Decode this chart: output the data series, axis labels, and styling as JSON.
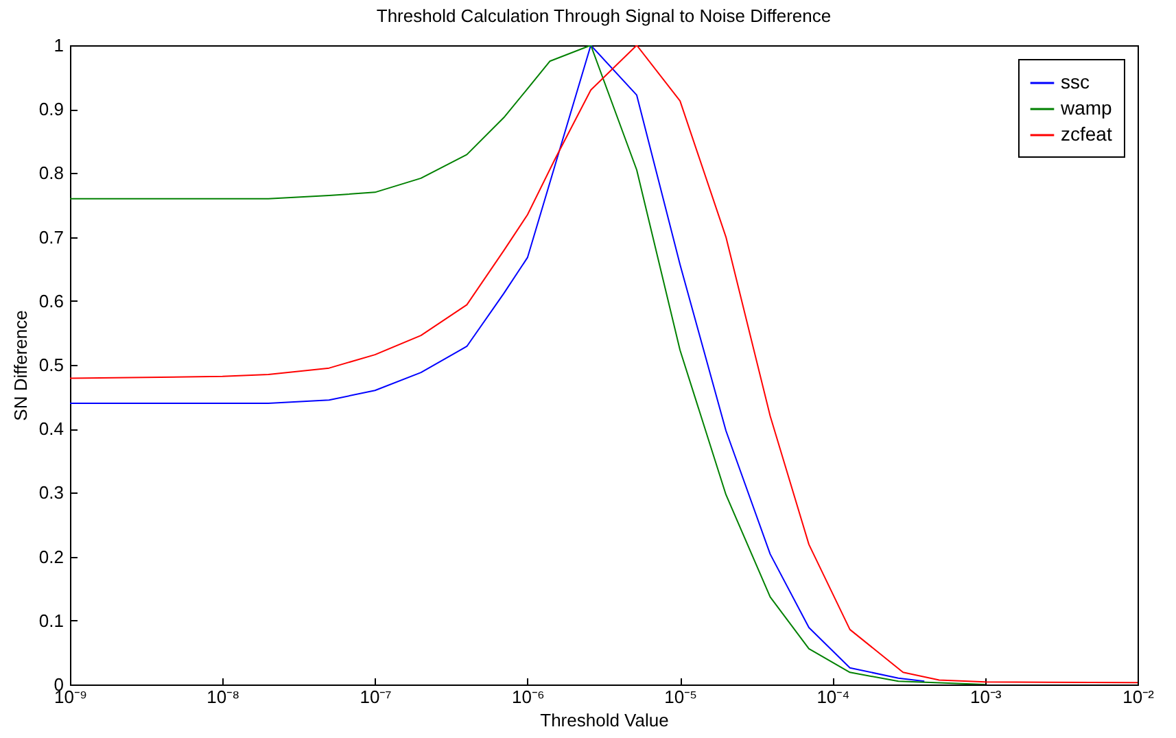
{
  "chart_data": {
    "type": "line",
    "title": "Threshold Calculation Through Signal to Noise Difference",
    "xlabel": "Threshold Value",
    "ylabel": "SN Difference",
    "log": "x",
    "grid": false,
    "legend": "top right",
    "line_style": "solid",
    "xlim": [
      1e-09,
      0.01
    ],
    "ylim": [
      0,
      1
    ],
    "xticks": [
      {
        "value": 1e-09,
        "label": "10⁻⁹"
      },
      {
        "value": 1e-08,
        "label": "10⁻⁸"
      },
      {
        "value": 1e-07,
        "label": "10⁻⁷"
      },
      {
        "value": 1e-06,
        "label": "10⁻⁶"
      },
      {
        "value": 1e-05,
        "label": "10⁻⁵"
      },
      {
        "value": 0.0001,
        "label": "10⁻⁴"
      },
      {
        "value": 0.001,
        "label": "10⁻³"
      },
      {
        "value": 0.01,
        "label": "10⁻²"
      }
    ],
    "yticks": [
      0,
      0.1,
      0.2,
      0.3,
      0.4,
      0.5,
      0.6,
      0.7,
      0.8,
      0.9,
      1
    ],
    "series": [
      {
        "name": "ssc",
        "color": "#0000ff",
        "x": [
          1e-09,
          2e-08,
          5e-08,
          1e-07,
          2e-07,
          4e-07,
          7e-07,
          1e-06,
          2.6e-06,
          5.2e-06,
          1e-05,
          2e-05,
          3.9e-05,
          7e-05,
          0.00013,
          0.00027,
          0.0004
        ],
        "values": [
          0.44,
          0.44,
          0.445,
          0.46,
          0.488,
          0.529,
          0.612,
          0.668,
          1,
          0.922,
          0.657,
          0.397,
          0.204,
          0.089,
          0.026,
          0.01,
          0.005
        ]
      },
      {
        "name": "wamp",
        "color": "#008000",
        "x": [
          1e-09,
          2e-08,
          5e-08,
          1e-07,
          2e-07,
          4e-07,
          7e-07,
          1e-06,
          1.4e-06,
          2.6e-06,
          5.2e-06,
          1e-05,
          2e-05,
          3.9e-05,
          7e-05,
          0.00013,
          0.00027,
          0.001
        ],
        "values": [
          0.76,
          0.76,
          0.765,
          0.77,
          0.792,
          0.829,
          0.887,
          0.932,
          0.975,
          1,
          0.805,
          0.523,
          0.297,
          0.137,
          0.056,
          0.019,
          0.005,
          0
        ]
      },
      {
        "name": "zcfeat",
        "color": "#ff0000",
        "x": [
          1e-09,
          1e-08,
          2e-08,
          5e-08,
          1e-07,
          2e-07,
          4e-07,
          7e-07,
          1e-06,
          1.5e-06,
          2.6e-06,
          5.2e-06,
          1e-05,
          2e-05,
          3.9e-05,
          7e-05,
          0.00013,
          0.00029,
          0.0005,
          0.001,
          0.01
        ],
        "values": [
          0.479,
          0.482,
          0.485,
          0.495,
          0.516,
          0.546,
          0.594,
          0.679,
          0.735,
          0.82,
          0.93,
          1,
          0.913,
          0.7,
          0.42,
          0.219,
          0.086,
          0.019,
          0.007,
          0.004,
          0.003
        ]
      }
    ]
  }
}
